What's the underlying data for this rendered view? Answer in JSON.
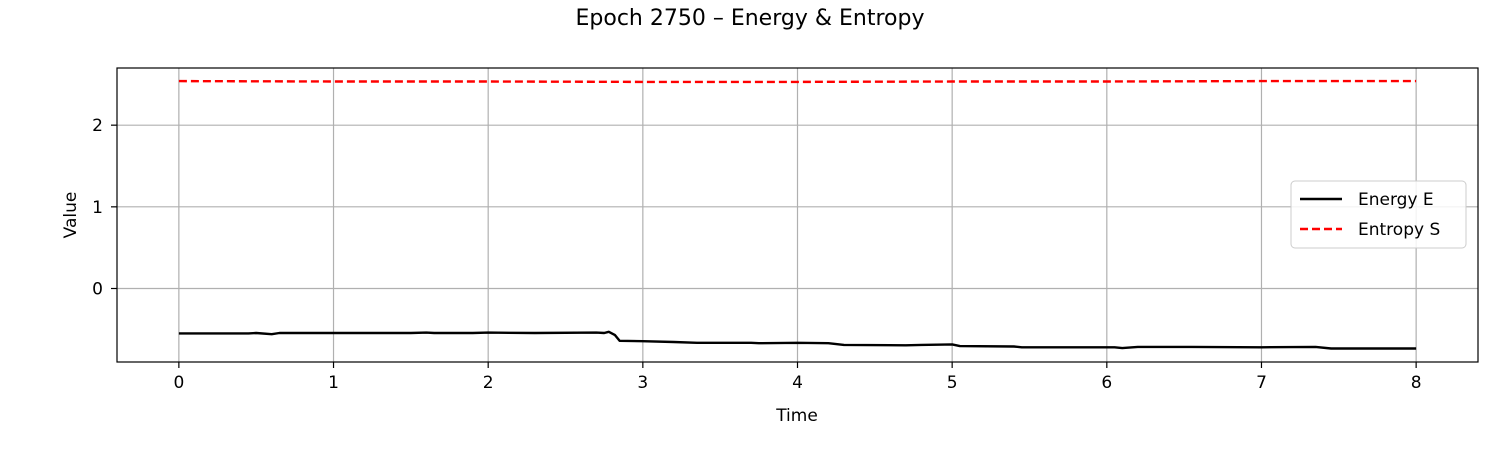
{
  "chart_data": {
    "type": "line",
    "title": "Epoch 2750 – Energy & Entropy",
    "xlabel": "Time",
    "ylabel": "Value",
    "xlim": [
      -0.4,
      8.4
    ],
    "ylim": [
      -0.9,
      2.7
    ],
    "xticks": [
      0,
      1,
      2,
      3,
      4,
      5,
      6,
      7,
      8
    ],
    "yticks": [
      0,
      1,
      2
    ],
    "grid": true,
    "legend_position": "center-right",
    "series": [
      {
        "name": "Energy E",
        "color": "#000000",
        "style": "solid",
        "points": [
          [
            0.0,
            -0.55
          ],
          [
            0.3,
            -0.55
          ],
          [
            0.45,
            -0.55
          ],
          [
            0.5,
            -0.545
          ],
          [
            0.6,
            -0.56
          ],
          [
            0.65,
            -0.545
          ],
          [
            1.0,
            -0.545
          ],
          [
            1.5,
            -0.545
          ],
          [
            1.6,
            -0.54
          ],
          [
            1.65,
            -0.545
          ],
          [
            1.9,
            -0.545
          ],
          [
            2.0,
            -0.54
          ],
          [
            2.3,
            -0.545
          ],
          [
            2.7,
            -0.54
          ],
          [
            2.75,
            -0.545
          ],
          [
            2.78,
            -0.53
          ],
          [
            2.82,
            -0.57
          ],
          [
            2.85,
            -0.64
          ],
          [
            3.0,
            -0.645
          ],
          [
            3.2,
            -0.655
          ],
          [
            3.35,
            -0.665
          ],
          [
            3.7,
            -0.665
          ],
          [
            3.75,
            -0.67
          ],
          [
            4.0,
            -0.665
          ],
          [
            4.2,
            -0.67
          ],
          [
            4.3,
            -0.69
          ],
          [
            4.7,
            -0.695
          ],
          [
            4.8,
            -0.69
          ],
          [
            5.0,
            -0.685
          ],
          [
            5.05,
            -0.705
          ],
          [
            5.4,
            -0.71
          ],
          [
            5.45,
            -0.72
          ],
          [
            5.6,
            -0.72
          ],
          [
            5.75,
            -0.72
          ],
          [
            6.05,
            -0.72
          ],
          [
            6.1,
            -0.73
          ],
          [
            6.2,
            -0.715
          ],
          [
            6.55,
            -0.715
          ],
          [
            7.0,
            -0.72
          ],
          [
            7.35,
            -0.715
          ],
          [
            7.45,
            -0.735
          ],
          [
            7.6,
            -0.735
          ],
          [
            8.0,
            -0.735
          ]
        ]
      },
      {
        "name": "Entropy S",
        "color": "#ff0000",
        "style": "dashed",
        "points": [
          [
            0.0,
            2.54
          ],
          [
            1.0,
            2.535
          ],
          [
            2.0,
            2.535
          ],
          [
            3.0,
            2.53
          ],
          [
            4.0,
            2.53
          ],
          [
            5.0,
            2.535
          ],
          [
            6.0,
            2.535
          ],
          [
            7.0,
            2.54
          ],
          [
            8.0,
            2.54
          ]
        ]
      }
    ]
  }
}
